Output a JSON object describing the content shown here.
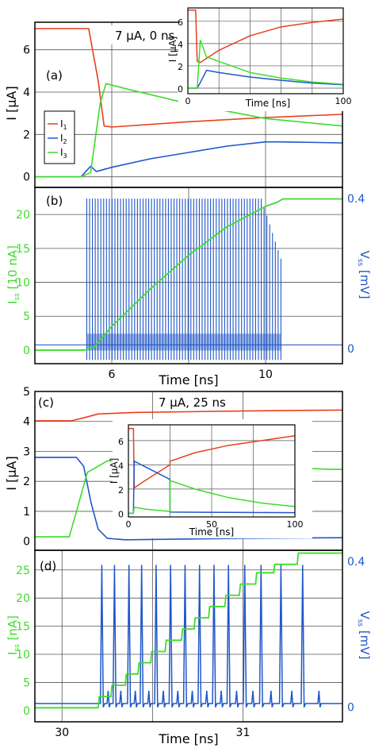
{
  "colors": {
    "red": "#e8401c",
    "blue": "#1f57c8",
    "green": "#3ddc2a",
    "grid": "#555555"
  },
  "chart_data": [
    {
      "id": "a",
      "type": "line",
      "panel_label": "(a)",
      "annotation": "7 μA, 0 ns",
      "xlabel": "",
      "ylabel": "I [μA]",
      "xlim": [
        4,
        12
      ],
      "ylim": [
        -0.5,
        7.3
      ],
      "xgrid": [
        6,
        10
      ],
      "yticks": [
        0,
        2,
        4,
        6
      ],
      "xticks": [],
      "legend": {
        "position": "left",
        "entries": [
          "I1",
          "I2",
          "I3"
        ]
      },
      "series": [
        {
          "name": "I1",
          "color": "red",
          "x": [
            4,
            5.4,
            5.65,
            5.8,
            6,
            8,
            10,
            12
          ],
          "y": [
            7.0,
            7.0,
            4.5,
            2.4,
            2.35,
            2.6,
            2.8,
            2.95
          ]
        },
        {
          "name": "I2",
          "color": "blue",
          "x": [
            4,
            5.2,
            5.35,
            5.45,
            5.6,
            6,
            7,
            8,
            9,
            10,
            10.4,
            12
          ],
          "y": [
            0,
            0,
            0.3,
            0.5,
            0.25,
            0.45,
            0.85,
            1.15,
            1.45,
            1.65,
            1.65,
            1.6
          ]
        },
        {
          "name": "I3",
          "color": "green",
          "x": [
            4,
            5.2,
            5.45,
            5.7,
            5.85,
            6.5,
            8,
            10,
            12
          ],
          "y": [
            0,
            0,
            0.2,
            3.5,
            4.4,
            4.1,
            3.45,
            2.75,
            2.4
          ]
        }
      ],
      "inset": {
        "xlabel": "Time [ns]",
        "ylabel": "I [μA]",
        "xlim": [
          0,
          100
        ],
        "ylim": [
          -0.5,
          7.2
        ],
        "xticks": [
          0,
          100
        ],
        "yticks": [
          0,
          2,
          4,
          6
        ],
        "series": [
          {
            "color": "red",
            "x": [
              0,
              5,
              6,
              8,
              20,
              40,
              60,
              80,
              100
            ],
            "y": [
              7,
              7,
              2.4,
              2.3,
              3.4,
              4.7,
              5.5,
              5.9,
              6.2
            ]
          },
          {
            "color": "blue",
            "x": [
              0,
              6,
              8,
              12,
              20,
              40,
              60,
              80,
              100
            ],
            "y": [
              0,
              0,
              0.5,
              1.6,
              1.4,
              1.0,
              0.7,
              0.45,
              0.3
            ]
          },
          {
            "color": "green",
            "x": [
              0,
              6,
              8,
              12,
              20,
              40,
              60,
              80,
              100
            ],
            "y": [
              0,
              0,
              4.3,
              2.8,
              2.4,
              1.4,
              0.9,
              0.55,
              0.35
            ]
          }
        ]
      }
    },
    {
      "id": "b",
      "type": "line",
      "panel_label": "(b)",
      "xlabel": "Time [ns]",
      "ylabel_left": "I_ss [10 nA]",
      "ylabel_right": "V_ss [mV]",
      "xlim": [
        4,
        12
      ],
      "ylim_left": [
        -2,
        24
      ],
      "ylim_right": [
        -0.04,
        0.43
      ],
      "xticks": [
        6,
        10
      ],
      "yticks_left": [
        0,
        5,
        10,
        15,
        20
      ],
      "yticks_right": [
        0,
        0.4
      ],
      "series": [
        {
          "name": "I_ss",
          "color": "green",
          "axis": "left",
          "x": [
            4,
            5.3,
            5.55,
            6,
            7,
            8,
            9,
            10,
            10.3,
            10.45,
            12
          ],
          "y": [
            0,
            0,
            0.5,
            3.5,
            9,
            14,
            18.2,
            21.2,
            21.8,
            22.3,
            22.3
          ]
        },
        {
          "name": "V_ss",
          "color": "blue",
          "axis": "right",
          "spike_train": {
            "start": 5.35,
            "end": 10.4,
            "count": 70,
            "peak": 0.4,
            "baseline": 0.01,
            "trough": -0.03,
            "inner_band": 0.04
          }
        }
      ]
    },
    {
      "id": "c",
      "type": "line",
      "panel_label": "(c)",
      "annotation": "7 μA, 25 ns",
      "xlabel": "",
      "ylabel": "I [μA]",
      "xlim": [
        29.85,
        31.55
      ],
      "ylim": [
        -0.3,
        5.0
      ],
      "yticks": [
        0,
        1,
        2,
        3,
        4,
        5
      ],
      "xgrid": [
        30.5,
        31
      ],
      "series": [
        {
          "name": "I1",
          "color": "red",
          "x": [
            29.85,
            30.05,
            30.12,
            30.2,
            30.4,
            31,
            31.55
          ],
          "y": [
            4.02,
            4.02,
            4.12,
            4.25,
            4.3,
            4.35,
            4.38
          ]
        },
        {
          "name": "I2",
          "color": "blue",
          "x": [
            29.85,
            30.08,
            30.12,
            30.16,
            30.2,
            30.25,
            30.35,
            31,
            31.55
          ],
          "y": [
            2.8,
            2.8,
            2.5,
            1.3,
            0.4,
            0.1,
            0.05,
            0.1,
            0.12
          ]
        },
        {
          "name": "I3",
          "color": "green",
          "x": [
            29.85,
            30.04,
            30.08,
            30.14,
            30.25,
            30.35,
            31.48,
            31.55
          ],
          "y": [
            0.15,
            0.15,
            1.0,
            2.3,
            2.68,
            2.7,
            2.4,
            2.4
          ]
        }
      ],
      "inset": {
        "xlabel": "Time [ns]",
        "ylabel": "I [μA]",
        "xlim": [
          0,
          100
        ],
        "ylim": [
          -0.3,
          7.3
        ],
        "xticks": [
          0,
          50,
          100
        ],
        "yticks": [
          0,
          2,
          4,
          6
        ],
        "series": [
          {
            "color": "red",
            "x": [
              0,
              3,
              3.5,
              10,
              24.9,
              25,
              40,
              60,
              80,
              100
            ],
            "y": [
              7,
              7,
              2.1,
              2.7,
              4.0,
              4.3,
              5.0,
              5.6,
              6.0,
              6.4
            ]
          },
          {
            "color": "blue",
            "x": [
              0,
              3,
              3.5,
              24.9,
              25,
              100
            ],
            "y": [
              0,
              0,
              4.3,
              2.8,
              0.1,
              0.05
            ]
          },
          {
            "color": "green",
            "x": [
              0,
              3,
              3.5,
              10,
              24.9,
              25,
              40,
              60,
              80,
              100
            ],
            "y": [
              0,
              0,
              0.5,
              0.35,
              0.15,
              2.7,
              2.0,
              1.3,
              0.85,
              0.55
            ]
          }
        ]
      }
    },
    {
      "id": "d",
      "type": "line",
      "panel_label": "(d)",
      "xlabel": "Time [ns]",
      "ylabel_left": "I_ss [nA]",
      "ylabel_right": "V_ss [mV]",
      "xlim": [
        29.85,
        31.55
      ],
      "ylim_left": [
        -2,
        28.5
      ],
      "ylim_right": [
        -0.04,
        0.43
      ],
      "xticks": [
        30,
        31
      ],
      "yticks_left": [
        0,
        5,
        10,
        15,
        20,
        25
      ],
      "yticks_right": [
        0,
        0.4
      ],
      "series": [
        {
          "name": "I_ss",
          "color": "green",
          "axis": "left",
          "steps": {
            "x0": 29.85,
            "y0": 0.5,
            "jumps": [
              30.2,
              30.27,
              30.35,
              30.42,
              30.49,
              30.57,
              30.66,
              30.73,
              30.81,
              30.9,
              30.98,
              31.07,
              31.17,
              31.3
            ],
            "y_levels": [
              2.5,
              4.5,
              6.5,
              8.5,
              10.5,
              12.5,
              14.5,
              16.5,
              18.5,
              20.5,
              22.5,
              24.5,
              26.0,
              28.0
            ]
          }
        },
        {
          "name": "V_ss",
          "color": "blue",
          "axis": "right",
          "spike_times": [
            30.22,
            30.29,
            30.37,
            30.44,
            30.52,
            30.6,
            30.68,
            30.76,
            30.84,
            30.92,
            31.01,
            31.1,
            31.21,
            31.33
          ],
          "small_spike_times": [
            30.255,
            30.325,
            30.405,
            30.48,
            30.56,
            30.64,
            30.72,
            30.8,
            30.88,
            30.965,
            31.055,
            31.155,
            31.27,
            31.42
          ],
          "peak": 0.39,
          "baseline": 0.01,
          "small_peak": 0.045
        }
      ]
    }
  ],
  "labels": {
    "a_ylabel": "I [μA]",
    "a_panel": "(a)",
    "a_ann": "7 μA, 0 ns",
    "a_inset_xlabel": "Time [ns]",
    "a_inset_ylabel": "I [μA]",
    "leg_I1": "I",
    "leg_I1_sub": "1",
    "leg_I2": "I",
    "leg_I2_sub": "2",
    "leg_I3": "I",
    "leg_I3_sub": "3",
    "b_panel": "(b)",
    "b_xlabel": "Time [ns]",
    "b_ylabel_main": "I",
    "b_ylabel_sub": "ss",
    "b_ylabel_unit": " [10 nA]",
    "b_ylabelR_main": "V",
    "b_ylabelR_sub": "ss",
    "b_ylabelR_unit": " [mV]",
    "c_ylabel": "I [μA]",
    "c_panel": "(c)",
    "c_ann": "7 μA, 25 ns",
    "c_inset_xlabel": "Time [ns]",
    "c_inset_ylabel": "I [μA]",
    "d_panel": "(d)",
    "d_xlabel": "Time [ns]",
    "d_ylabel_main": "I",
    "d_ylabel_sub": "ss",
    "d_ylabel_unit": " [nA]",
    "d_ylabelR_main": "V",
    "d_ylabelR_sub": "ss",
    "d_ylabelR_unit": " [mV]"
  }
}
